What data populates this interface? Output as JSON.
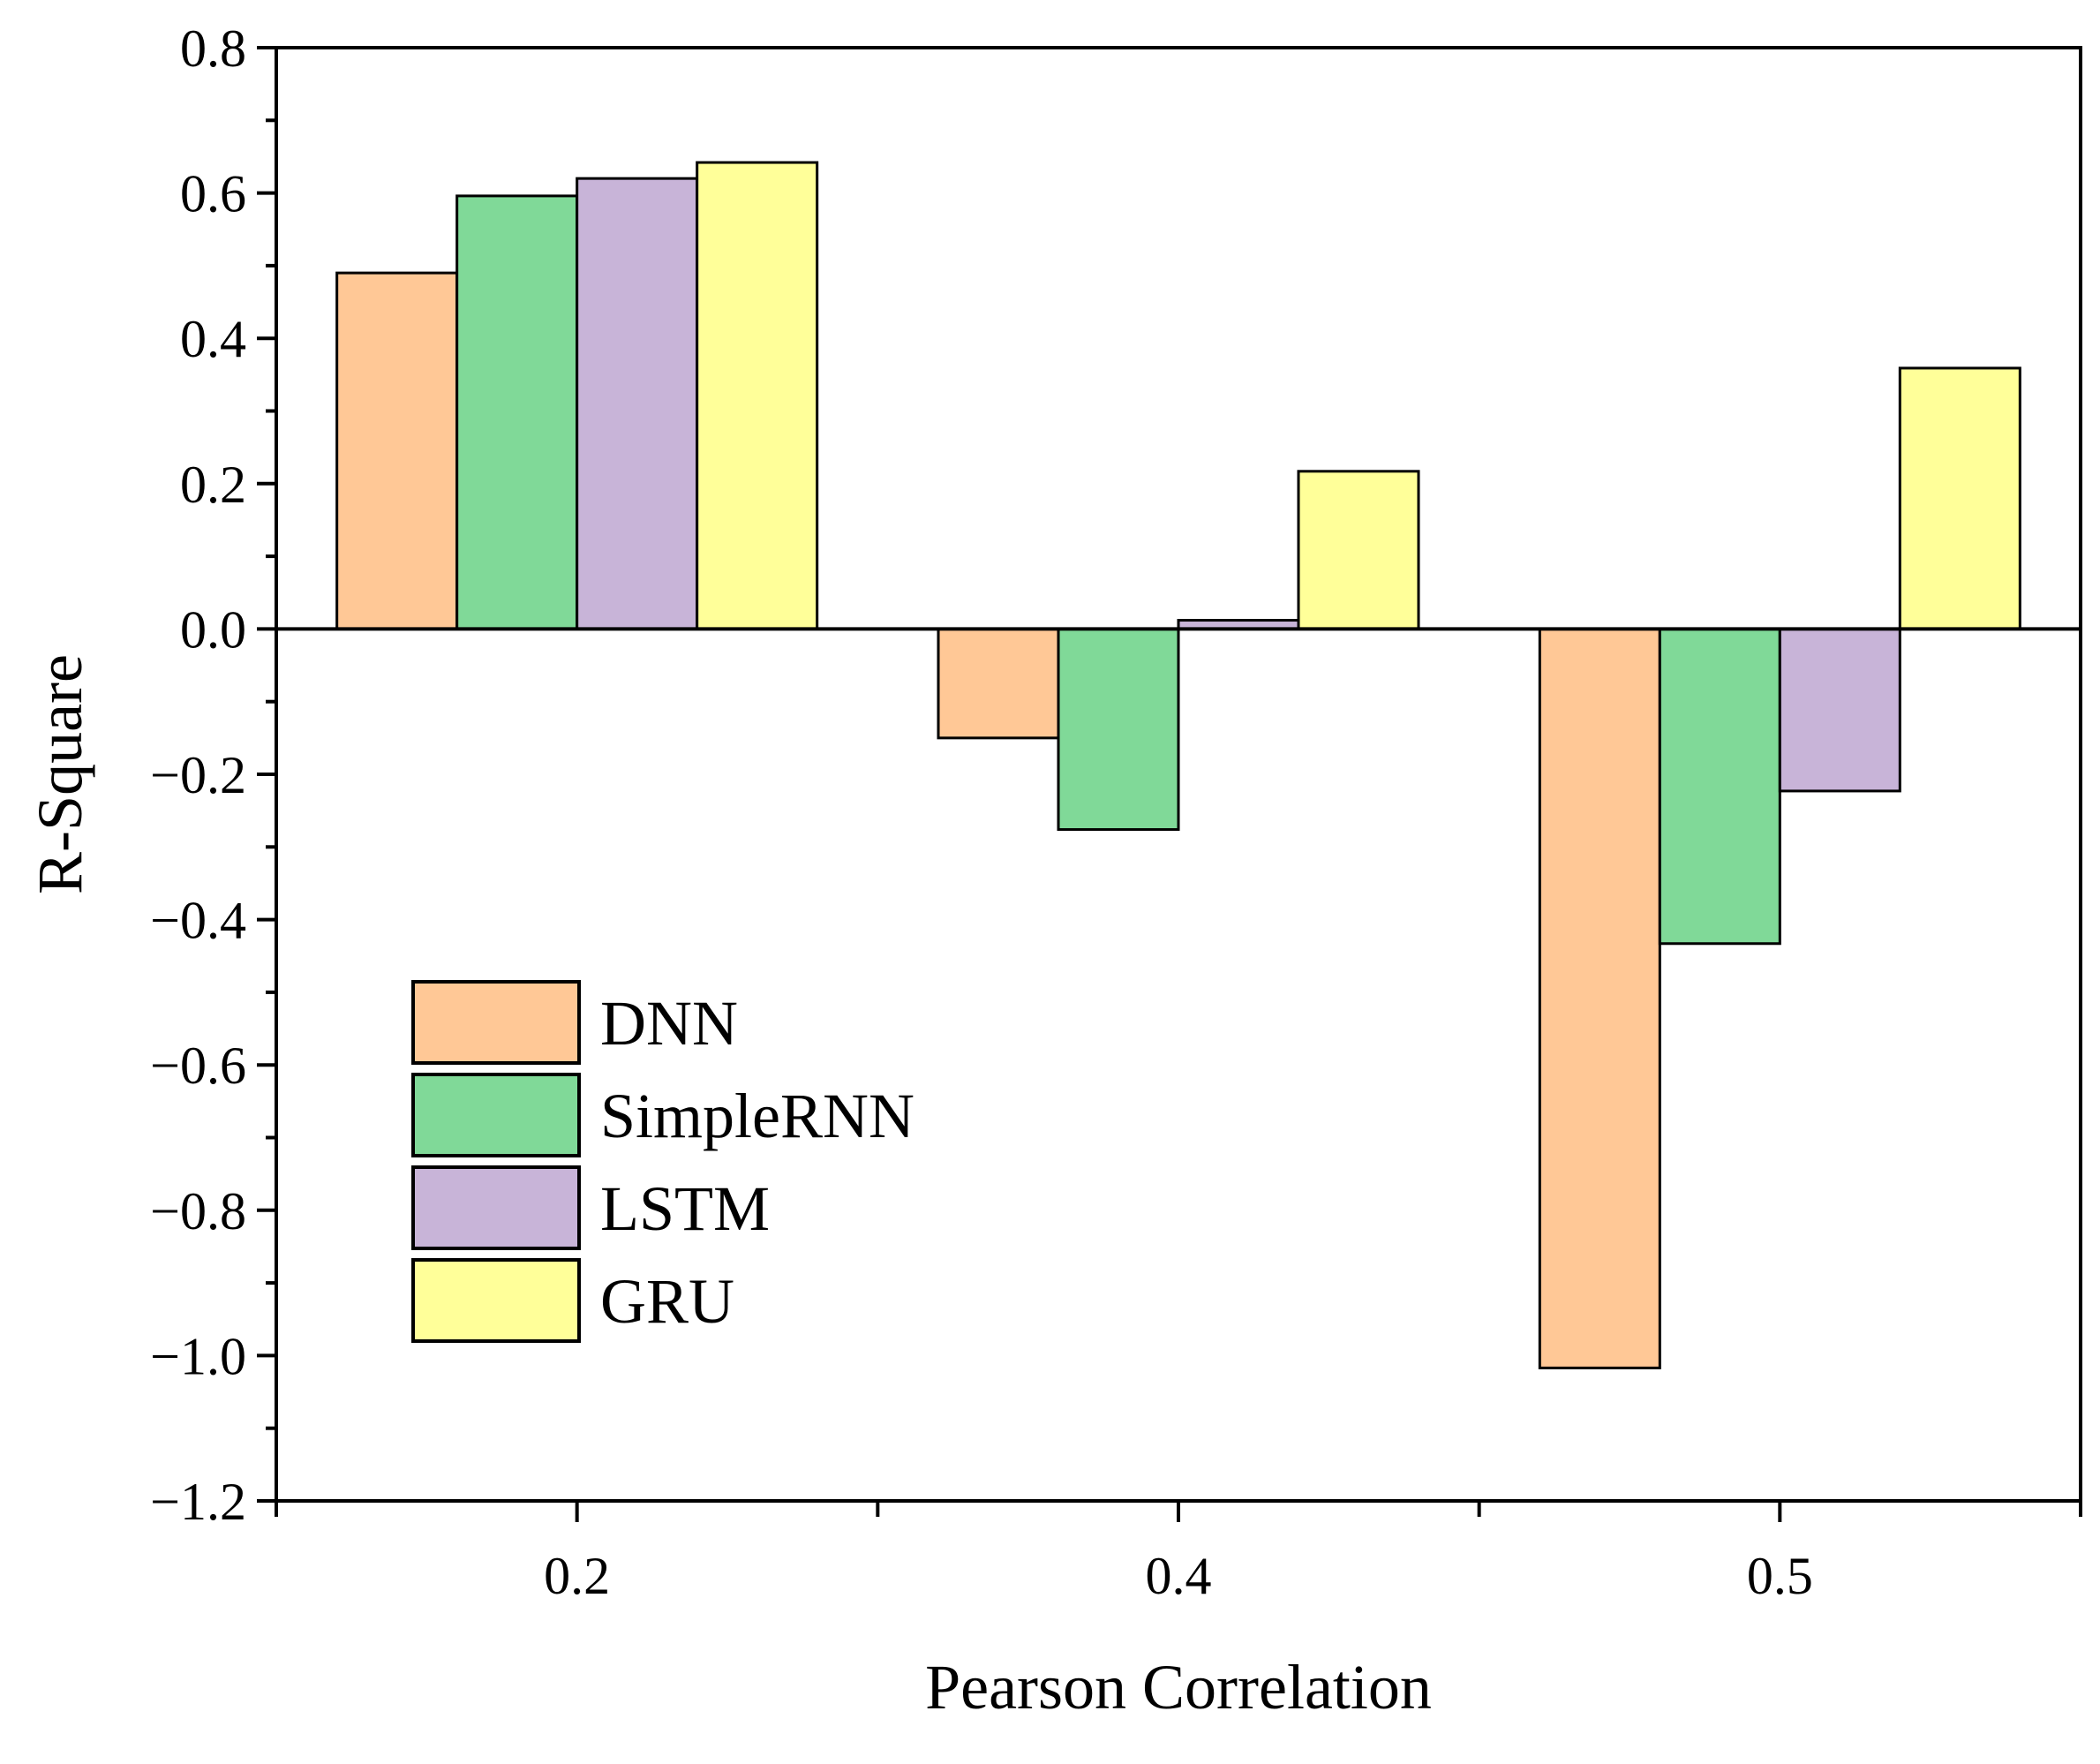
{
  "chart_data": {
    "type": "bar",
    "title": "",
    "xlabel": "Pearson Correlation",
    "ylabel": "R-Square",
    "categories": [
      "0.2",
      "0.4",
      "0.5"
    ],
    "ylim": [
      -1.2,
      0.8
    ],
    "yticks": [
      0.8,
      0.6,
      0.4,
      0.2,
      0.0,
      -0.2,
      -0.4,
      -0.6,
      -0.8,
      -1.0,
      -1.2
    ],
    "ytick_labels": [
      "0.8",
      "0.6",
      "0.4",
      "0.2",
      "0.0",
      "−0.2",
      "−0.4",
      "−0.6",
      "−0.8",
      "−1.0",
      "−1.2"
    ],
    "grid": false,
    "legend_position": "lower-left",
    "series": [
      {
        "name": "DNN",
        "color": "#FFC896",
        "values": [
          0.49,
          -0.15,
          -1.017
        ]
      },
      {
        "name": "SimpleRNN",
        "color": "#80D998",
        "values": [
          0.596,
          -0.276,
          -0.433
        ]
      },
      {
        "name": "LSTM",
        "color": "#C8B4D8",
        "values": [
          0.62,
          0.012,
          -0.223
        ]
      },
      {
        "name": "GRU",
        "color": "#FFFF99",
        "values": [
          0.642,
          0.217,
          0.359
        ]
      }
    ]
  }
}
